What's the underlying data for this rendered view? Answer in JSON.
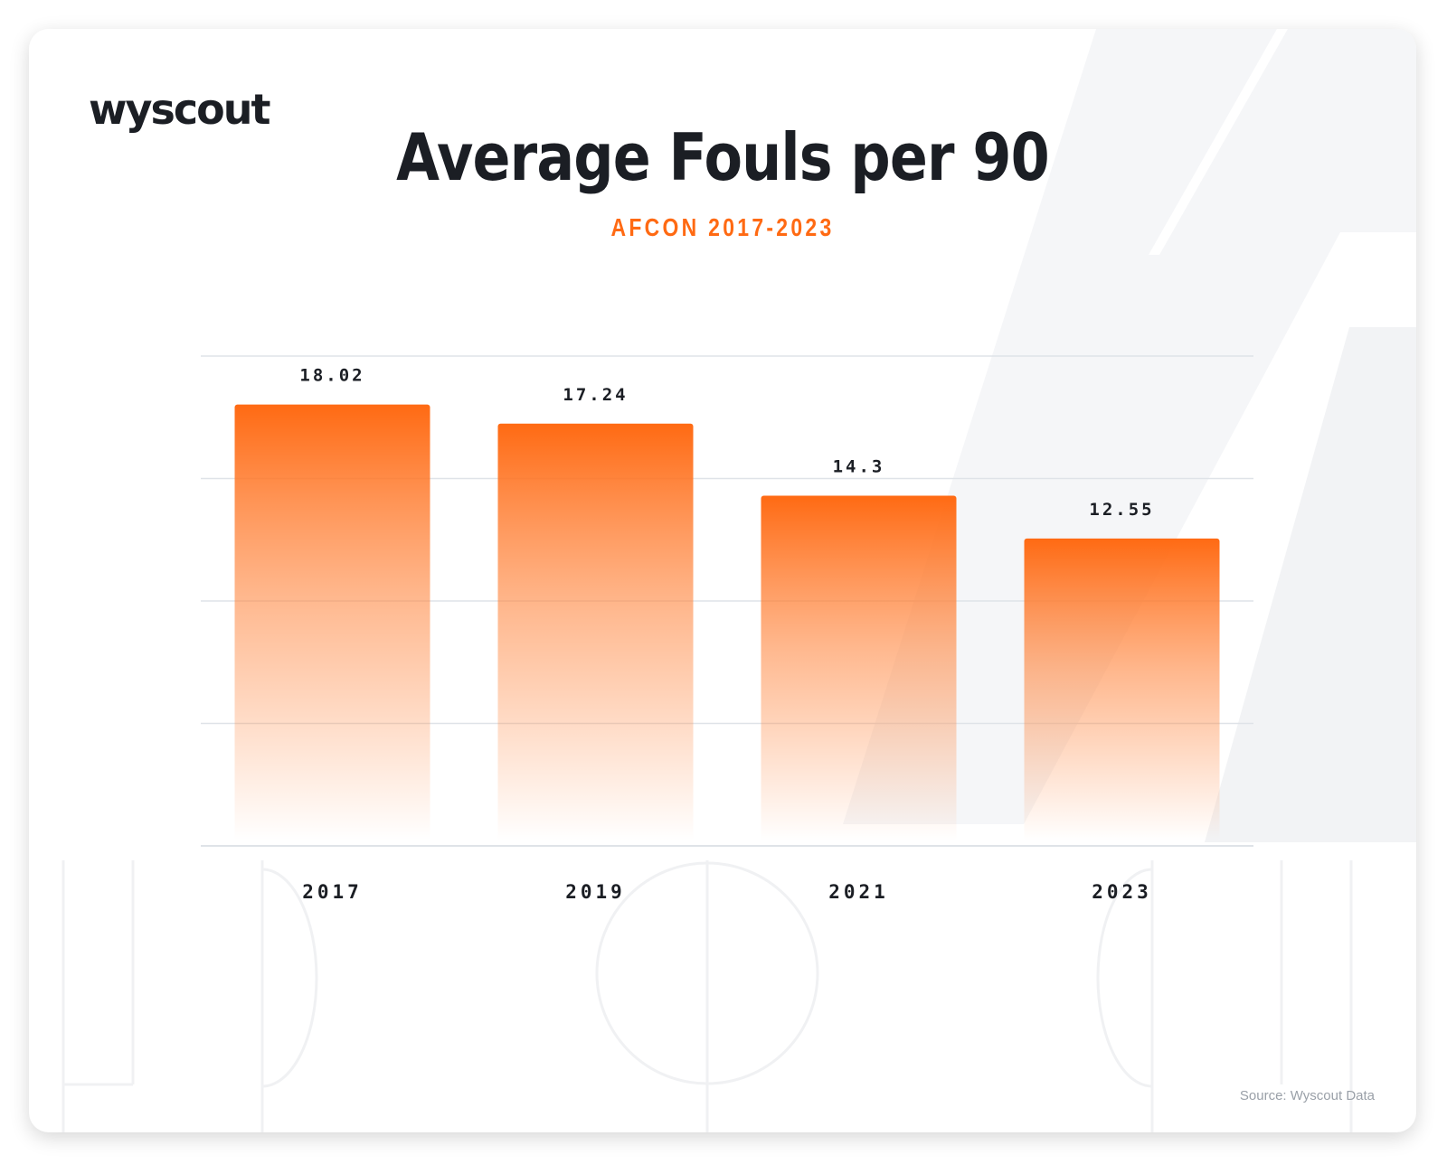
{
  "brand": {
    "logo_text": "wyscout"
  },
  "header": {
    "title": "Average Fouls per 90",
    "subtitle": "AFCON 2017-2023"
  },
  "footer": {
    "source": "Source: Wyscout Data"
  },
  "colors": {
    "accent": "#ff6a13",
    "text_dark": "#1b1e24",
    "gridline": "#dfe3e8"
  },
  "chart_data": {
    "type": "bar",
    "title": "Average Fouls per 90",
    "subtitle": "AFCON 2017-2023",
    "categories": [
      "2017",
      "2019",
      "2021",
      "2023"
    ],
    "values": [
      18.02,
      17.24,
      14.3,
      12.55
    ],
    "value_labels": [
      "18.02",
      "17.24",
      "14.3",
      "12.55"
    ],
    "xlabel": "",
    "ylabel": "",
    "ylim": [
      0,
      20
    ],
    "grid": true,
    "legend": "none"
  }
}
